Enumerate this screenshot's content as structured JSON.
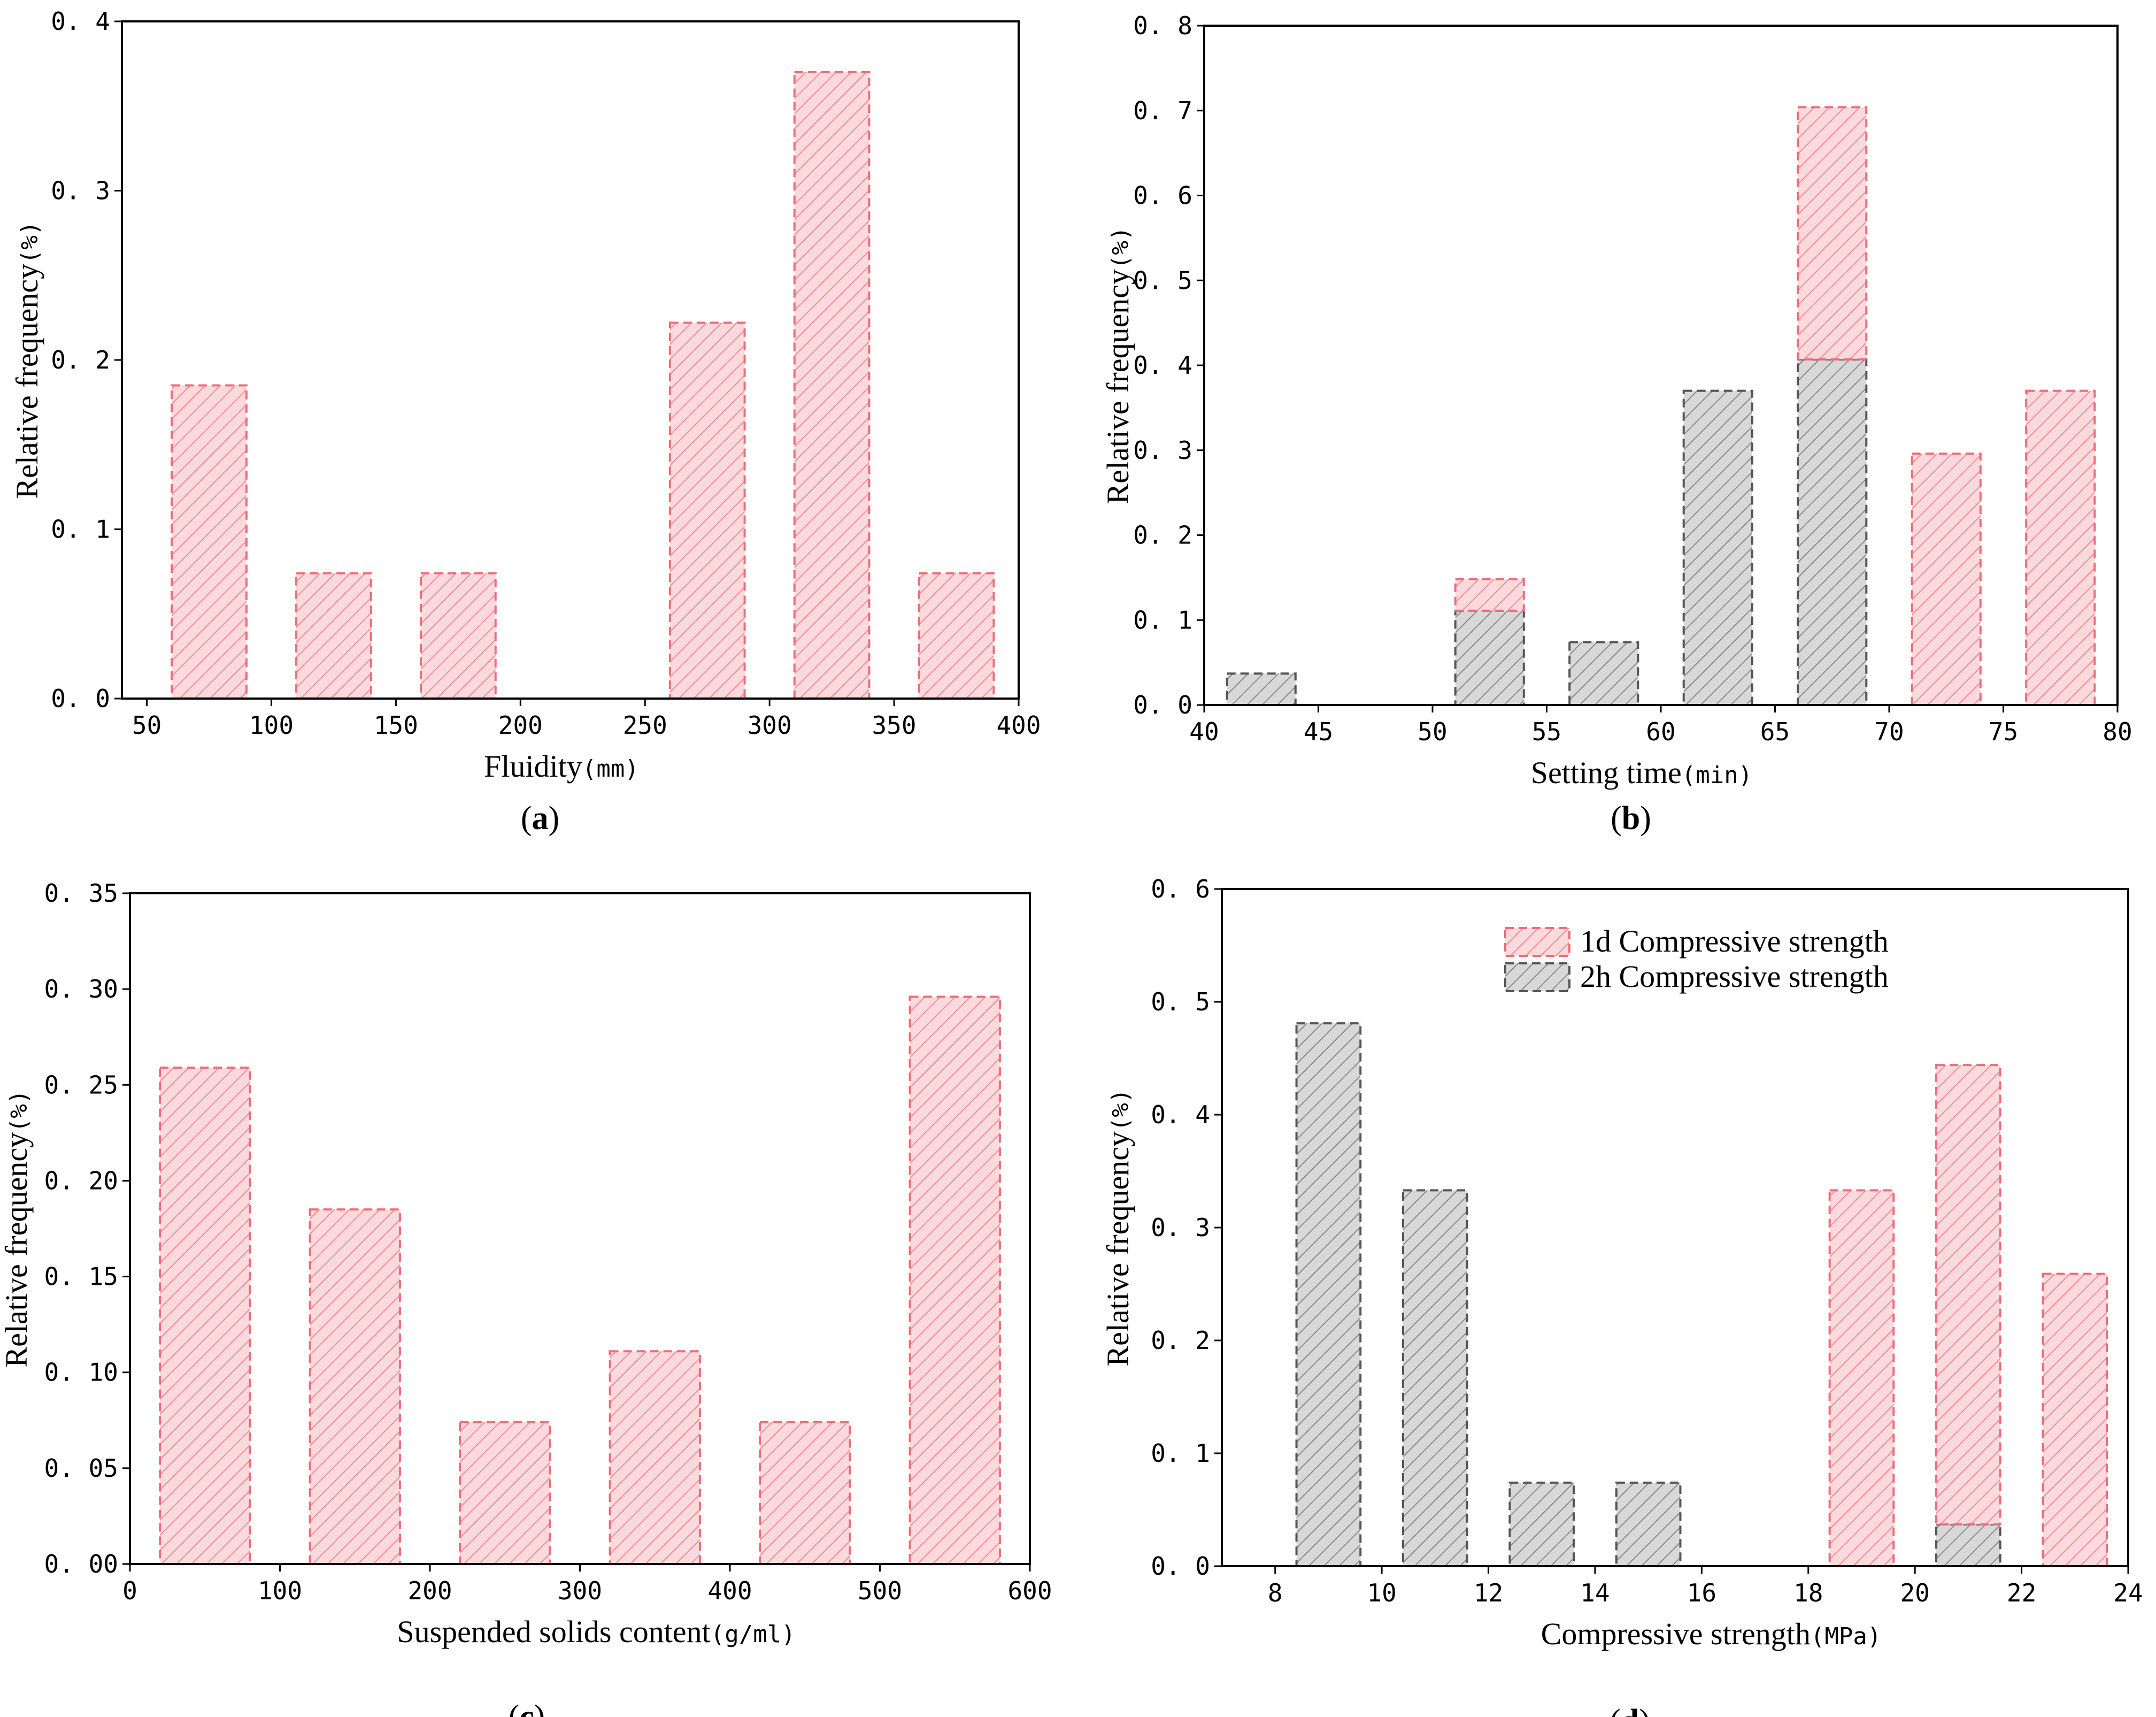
{
  "colors": {
    "pink_fill": "#fcd9dc",
    "pink_edge": "#ee6d7a",
    "gray_fill": "#d6d6d6",
    "gray_edge": "#555555"
  },
  "chart_data": [
    {
      "panel": "(a)",
      "bold_letter": "a",
      "type": "bar",
      "xlabel": "Fluidity",
      "xunit": "(mm)",
      "ylabel": "Relative frequency",
      "yunit": "(%)",
      "xlim": [
        40,
        400
      ],
      "ylim": [
        0,
        0.4
      ],
      "xticks": [
        50,
        100,
        150,
        200,
        250,
        300,
        350,
        400
      ],
      "xtick_labels": [
        "50",
        "100",
        "150",
        "200",
        "250",
        "300",
        "350",
        "400"
      ],
      "yticks": [
        0,
        0.1,
        0.2,
        0.3,
        0.4
      ],
      "ytick_labels": [
        "0. 0",
        "0. 1",
        "0. 2",
        "0. 3",
        "0. 4"
      ],
      "series": [
        {
          "name": "frequency",
          "color": "pink",
          "bars": [
            {
              "x0": 60,
              "x1": 90,
              "y": 0.185
            },
            {
              "x0": 110,
              "x1": 140,
              "y": 0.074
            },
            {
              "x0": 160,
              "x1": 190,
              "y": 0.074
            },
            {
              "x0": 260,
              "x1": 290,
              "y": 0.222
            },
            {
              "x0": 310,
              "x1": 340,
              "y": 0.37
            },
            {
              "x0": 360,
              "x1": 390,
              "y": 0.074
            }
          ]
        }
      ]
    },
    {
      "panel": "(b)",
      "bold_letter": "b",
      "type": "bar",
      "xlabel": "Setting time",
      "xunit": "(min)",
      "ylabel": "Relative frequency",
      "yunit": "(%)",
      "xlim": [
        40,
        80
      ],
      "ylim": [
        0,
        0.8
      ],
      "xticks": [
        40,
        45,
        50,
        55,
        60,
        65,
        70,
        75,
        80
      ],
      "xtick_labels": [
        "40",
        "45",
        "50",
        "55",
        "60",
        "65",
        "70",
        "75",
        "80"
      ],
      "yticks": [
        0,
        0.1,
        0.2,
        0.3,
        0.4,
        0.5,
        0.6,
        0.7,
        0.8
      ],
      "ytick_labels": [
        "0. 0",
        "0. 1",
        "0. 2",
        "0. 3",
        "0. 4",
        "0. 5",
        "0. 6",
        "0. 7",
        "0. 8"
      ],
      "series": [
        {
          "name": "pink",
          "color": "pink",
          "bars": [
            {
              "x0": 51,
              "x1": 54,
              "y": 0.148
            },
            {
              "x0": 66,
              "x1": 69,
              "y": 0.704
            },
            {
              "x0": 71,
              "x1": 74,
              "y": 0.296
            },
            {
              "x0": 76,
              "x1": 79,
              "y": 0.37
            }
          ]
        },
        {
          "name": "gray",
          "color": "gray",
          "bars": [
            {
              "x0": 41,
              "x1": 44,
              "y": 0.037
            },
            {
              "x0": 51,
              "x1": 54,
              "y": 0.111
            },
            {
              "x0": 56,
              "x1": 59,
              "y": 0.074
            },
            {
              "x0": 61,
              "x1": 64,
              "y": 0.37
            },
            {
              "x0": 66,
              "x1": 69,
              "y": 0.407
            }
          ]
        }
      ]
    },
    {
      "panel": "(c)",
      "bold_letter": "c",
      "type": "bar",
      "xlabel": "Suspended solids content",
      "xunit": "(g/ml)",
      "ylabel": "Relative frequency",
      "yunit": "(%)",
      "xlim": [
        0,
        600
      ],
      "ylim": [
        0,
        0.35
      ],
      "xticks": [
        0,
        100,
        200,
        300,
        400,
        500,
        600
      ],
      "xtick_labels": [
        "0",
        "100",
        "200",
        "300",
        "400",
        "500",
        "600"
      ],
      "yticks": [
        0,
        0.05,
        0.1,
        0.15,
        0.2,
        0.25,
        0.3,
        0.35
      ],
      "ytick_labels": [
        "0. 00",
        "0. 05",
        "0. 10",
        "0. 15",
        "0. 20",
        "0. 25",
        "0. 30",
        "0. 35"
      ],
      "series": [
        {
          "name": "frequency",
          "color": "pink",
          "bars": [
            {
              "x0": 20,
              "x1": 80,
              "y": 0.259
            },
            {
              "x0": 120,
              "x1": 180,
              "y": 0.185
            },
            {
              "x0": 220,
              "x1": 280,
              "y": 0.074
            },
            {
              "x0": 320,
              "x1": 380,
              "y": 0.111
            },
            {
              "x0": 420,
              "x1": 480,
              "y": 0.074
            },
            {
              "x0": 520,
              "x1": 580,
              "y": 0.296
            }
          ]
        }
      ]
    },
    {
      "panel": "(d)",
      "bold_letter": "d",
      "type": "bar",
      "xlabel": "Compressive strength",
      "xunit": "(MPa)",
      "ylabel": "Relative frequency",
      "yunit": "(%)",
      "xlim": [
        7,
        24
      ],
      "ylim": [
        0,
        0.6
      ],
      "xticks": [
        8,
        10,
        12,
        14,
        16,
        18,
        20,
        22,
        24
      ],
      "xtick_labels": [
        "8",
        "10",
        "12",
        "14",
        "16",
        "18",
        "20",
        "22",
        "24"
      ],
      "yticks": [
        0,
        0.1,
        0.2,
        0.3,
        0.4,
        0.5,
        0.6
      ],
      "ytick_labels": [
        "0. 0",
        "0. 1",
        "0. 2",
        "0. 3",
        "0. 4",
        "0. 5",
        "0. 6"
      ],
      "legend": {
        "position": "top-right",
        "entries": [
          {
            "label": "1d Compressive strength",
            "color": "pink"
          },
          {
            "label": "2h Compressive strength",
            "color": "gray"
          }
        ]
      },
      "series": [
        {
          "name": "1d Compressive strength",
          "color": "pink",
          "bars": [
            {
              "x0": 18.4,
              "x1": 19.6,
              "y": 0.333
            },
            {
              "x0": 20.4,
              "x1": 21.6,
              "y": 0.444
            },
            {
              "x0": 22.4,
              "x1": 23.6,
              "y": 0.259
            }
          ]
        },
        {
          "name": "2h Compressive strength",
          "color": "gray",
          "bars": [
            {
              "x0": 8.4,
              "x1": 9.6,
              "y": 0.481
            },
            {
              "x0": 10.4,
              "x1": 11.6,
              "y": 0.333
            },
            {
              "x0": 12.4,
              "x1": 13.6,
              "y": 0.074
            },
            {
              "x0": 14.4,
              "x1": 15.6,
              "y": 0.074
            },
            {
              "x0": 20.4,
              "x1": 21.6,
              "y": 0.037
            }
          ]
        }
      ]
    }
  ]
}
